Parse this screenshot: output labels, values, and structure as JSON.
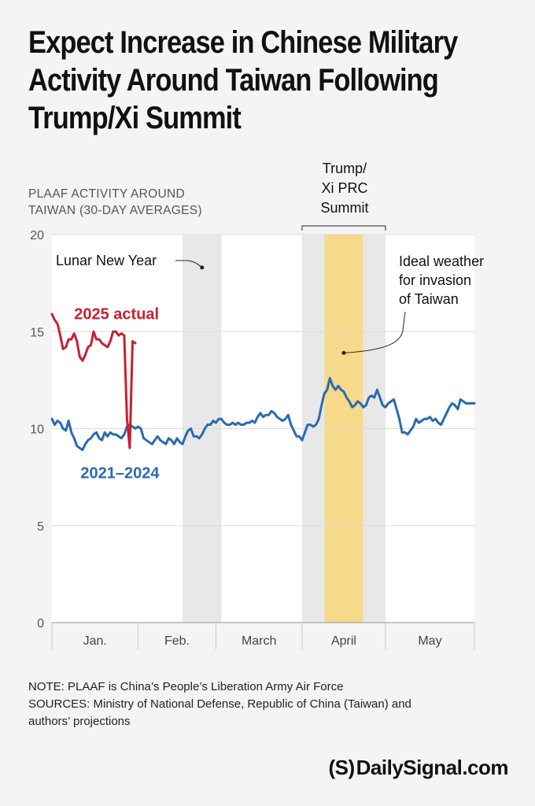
{
  "title_lines": [
    "Expect Increase in Chinese Military",
    "Activity Around Taiwan Following",
    "Trump/Xi Summit"
  ],
  "notes": {
    "note": "NOTE: PLAAF is China’s People’s Liberation Army Air Force",
    "sources_line1": "SOURCES: Ministry of National Defense, Republic of China (Taiwan) and",
    "sources_line2": "authors’ projections"
  },
  "logo": {
    "mark": "(S)",
    "text": "DailySignal.com"
  },
  "colors": {
    "background": "#f4f4f4",
    "plot_bg": "#ffffff",
    "grid": "#dcdcdc",
    "band_gray": "#e8e8e8",
    "band_gold": "#f7d98b",
    "series_2025": "#c8202f",
    "series_hist": "#2a6bb0",
    "text_gray": "#555555"
  },
  "chart_data": {
    "type": "line",
    "ylabel_lines": [
      "PLAAF ACTIVITY AROUND",
      "TAIWAN (30-DAY AVERAGES)"
    ],
    "ylim": [
      0,
      20
    ],
    "yticks": [
      0,
      5,
      10,
      15,
      20
    ],
    "ytick_labels": [
      "0",
      "5",
      "10",
      "15",
      "20"
    ],
    "xlim": [
      0,
      152
    ],
    "months": [
      {
        "label": "Jan.",
        "start": 0,
        "end": 31
      },
      {
        "label": "Feb.",
        "start": 31,
        "end": 59
      },
      {
        "label": "March",
        "start": 59,
        "end": 90
      },
      {
        "label": "April",
        "start": 90,
        "end": 120
      },
      {
        "label": "May",
        "start": 120,
        "end": 152
      }
    ],
    "bands": [
      {
        "name": "lunar-new-year-band",
        "start": 47,
        "end": 61,
        "color": "band_gray"
      },
      {
        "name": "summit-gray-band",
        "start": 90,
        "end": 98,
        "color": "band_gray"
      },
      {
        "name": "ideal-weather-band",
        "start": 98,
        "end": 112,
        "color": "band_gold"
      },
      {
        "name": "summit-gray-band-right",
        "start": 112,
        "end": 120,
        "color": "band_gray"
      }
    ],
    "bracket": {
      "start": 90,
      "end": 120,
      "label_lines": [
        "Trump/",
        "Xi PRC",
        "Summit"
      ]
    },
    "annotations": {
      "lunar_new_year": {
        "label": "Lunar New Year",
        "x": 54,
        "y": 18.3
      },
      "ideal_weather": {
        "label_lines": [
          "Ideal weather",
          "for invasion",
          "of Taiwan"
        ],
        "x": 105,
        "y": 13.9
      }
    },
    "series": [
      {
        "name": "2025 actual",
        "color": "series_2025",
        "label_x": 8,
        "label_y": 15.8,
        "x": [
          0,
          1,
          2,
          3,
          4,
          5,
          6,
          7,
          8,
          9,
          10,
          11,
          12,
          13,
          14,
          15,
          16,
          17,
          18,
          19,
          20,
          21,
          22,
          23,
          24,
          25,
          26,
          27,
          28,
          29,
          30,
          31,
          32
        ],
        "y": [
          15.9,
          15.6,
          15.4,
          14.8,
          14.1,
          14.2,
          14.6,
          14.6,
          14.9,
          14.5,
          13.7,
          13.5,
          13.8,
          14.2,
          14.3,
          15.0,
          14.6,
          14.6,
          14.4,
          14.3,
          14.2,
          14.5,
          15.0,
          15.0,
          14.8,
          14.9,
          14.8,
          10.5,
          9.0,
          14.5,
          14.4,
          null,
          null
        ]
      },
      {
        "name": "2021–2024",
        "color": "series_hist",
        "label_x": 12,
        "label_y": 7.6,
        "x": [
          0,
          1,
          2,
          3,
          4,
          5,
          6,
          7,
          8,
          9,
          10,
          11,
          12,
          13,
          14,
          15,
          16,
          17,
          18,
          19,
          20,
          21,
          22,
          23,
          24,
          25,
          26,
          27,
          28,
          29,
          30,
          31,
          32,
          33,
          34,
          35,
          36,
          37,
          38,
          39,
          40,
          41,
          42,
          43,
          44,
          45,
          46,
          47,
          48,
          49,
          50,
          51,
          52,
          53,
          54,
          55,
          56,
          57,
          58,
          59,
          60,
          61,
          62,
          63,
          64,
          65,
          66,
          67,
          68,
          69,
          70,
          71,
          72,
          73,
          74,
          75,
          76,
          77,
          78,
          79,
          80,
          81,
          82,
          83,
          84,
          85,
          86,
          87,
          88,
          89,
          90,
          91,
          92,
          93,
          94,
          95,
          96,
          97,
          98,
          99,
          100,
          101,
          102,
          103,
          104,
          105,
          106,
          107,
          108,
          109,
          110,
          111,
          112,
          113,
          114,
          115,
          116,
          117,
          118,
          119,
          120,
          121,
          122,
          123,
          124,
          125,
          126,
          127,
          128,
          129,
          130,
          131,
          132,
          133,
          134,
          135,
          136,
          137,
          138,
          139,
          140,
          141,
          142,
          143,
          144,
          145,
          146,
          147,
          148,
          149,
          150,
          151,
          152
        ],
        "y": [
          10.5,
          10.2,
          10.4,
          10.3,
          10.0,
          9.9,
          10.4,
          9.8,
          9.5,
          9.1,
          9.0,
          8.9,
          9.2,
          9.4,
          9.5,
          9.7,
          9.8,
          9.5,
          9.4,
          9.8,
          9.6,
          9.8,
          9.7,
          9.7,
          9.6,
          9.5,
          9.7,
          10.1,
          10.2,
          10.1,
          10.0,
          10.1,
          10.0,
          9.5,
          9.4,
          9.3,
          9.2,
          9.4,
          9.6,
          9.4,
          9.3,
          9.2,
          9.5,
          9.4,
          9.2,
          9.5,
          9.3,
          9.2,
          9.6,
          9.9,
          10.0,
          9.6,
          9.6,
          9.5,
          9.7,
          10.0,
          10.2,
          10.2,
          10.4,
          10.3,
          10.5,
          10.5,
          10.3,
          10.2,
          10.2,
          10.3,
          10.2,
          10.3,
          10.2,
          10.2,
          10.3,
          10.3,
          10.4,
          10.3,
          10.6,
          10.8,
          10.6,
          10.7,
          10.7,
          10.9,
          10.8,
          10.6,
          10.5,
          10.4,
          10.5,
          10.7,
          10.2,
          9.9,
          9.6,
          9.6,
          9.4,
          9.8,
          10.2,
          10.2,
          10.1,
          10.2,
          10.5,
          11.2,
          11.8,
          12.0,
          12.6,
          12.2,
          12.0,
          12.2,
          12.0,
          11.9,
          11.6,
          11.4,
          11.1,
          11.2,
          11.4,
          11.3,
          11.1,
          11.2,
          11.6,
          11.7,
          11.6,
          12.0,
          11.6,
          11.2,
          11.1,
          11.3,
          11.4,
          11.5,
          11.0,
          10.5,
          9.8,
          9.8,
          9.7,
          9.9,
          10.1,
          10.5,
          10.3,
          10.4,
          10.5,
          10.5,
          10.6,
          10.4,
          10.5,
          10.3,
          10.2,
          10.5,
          10.8,
          11.1,
          11.3,
          11.2,
          11.0,
          11.5,
          11.4,
          11.3,
          11.3,
          11.3,
          11.3
        ]
      }
    ]
  }
}
